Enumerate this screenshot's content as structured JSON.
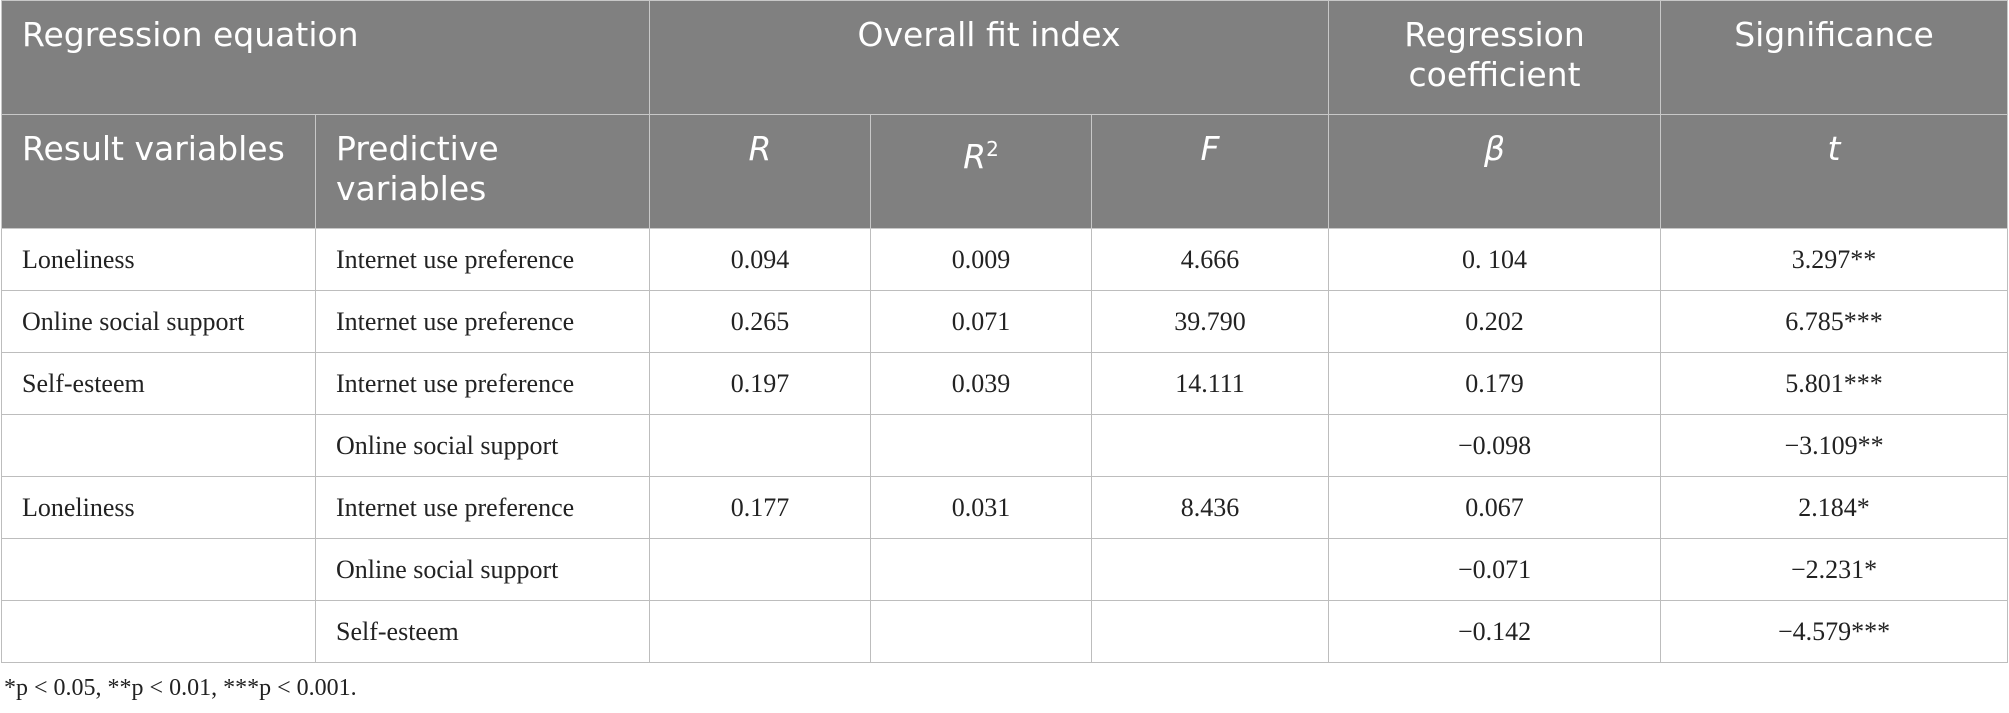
{
  "table": {
    "header_top": [
      "Regression equation",
      "Overall fit index",
      "Regression coefficient",
      "Significance"
    ],
    "header_sub": [
      {
        "text": "Result variables"
      },
      {
        "text": "Predictive variables"
      },
      {
        "text": "R"
      },
      {
        "text": "R",
        "sup": "2"
      },
      {
        "text": "F"
      },
      {
        "text": "β"
      },
      {
        "text": "t"
      }
    ],
    "rows": [
      [
        "Loneliness",
        "Internet use preference",
        "0.094",
        "0.009",
        "4.666",
        "0. 104",
        "3.297**"
      ],
      [
        "Online social support",
        "Internet use preference",
        "0.265",
        "0.071",
        "39.790",
        "0.202",
        "6.785***"
      ],
      [
        "Self-esteem",
        "Internet use preference",
        "0.197",
        "0.039",
        "14.111",
        "0.179",
        "5.801***"
      ],
      [
        null,
        "Online social support",
        null,
        null,
        null,
        "−0.098",
        "−3.109**"
      ],
      [
        "Loneliness",
        "Internet use preference",
        "0.177",
        "0.031",
        "8.436",
        "0.067",
        "2.184*"
      ],
      [
        null,
        "Online social support",
        null,
        null,
        null,
        "−0.071",
        "−2.231*"
      ],
      [
        null,
        "Self-esteem",
        null,
        null,
        null,
        "−0.142",
        "−4.579***"
      ]
    ]
  },
  "footnote": "*p < 0.05, **p < 0.01, ***p < 0.001."
}
